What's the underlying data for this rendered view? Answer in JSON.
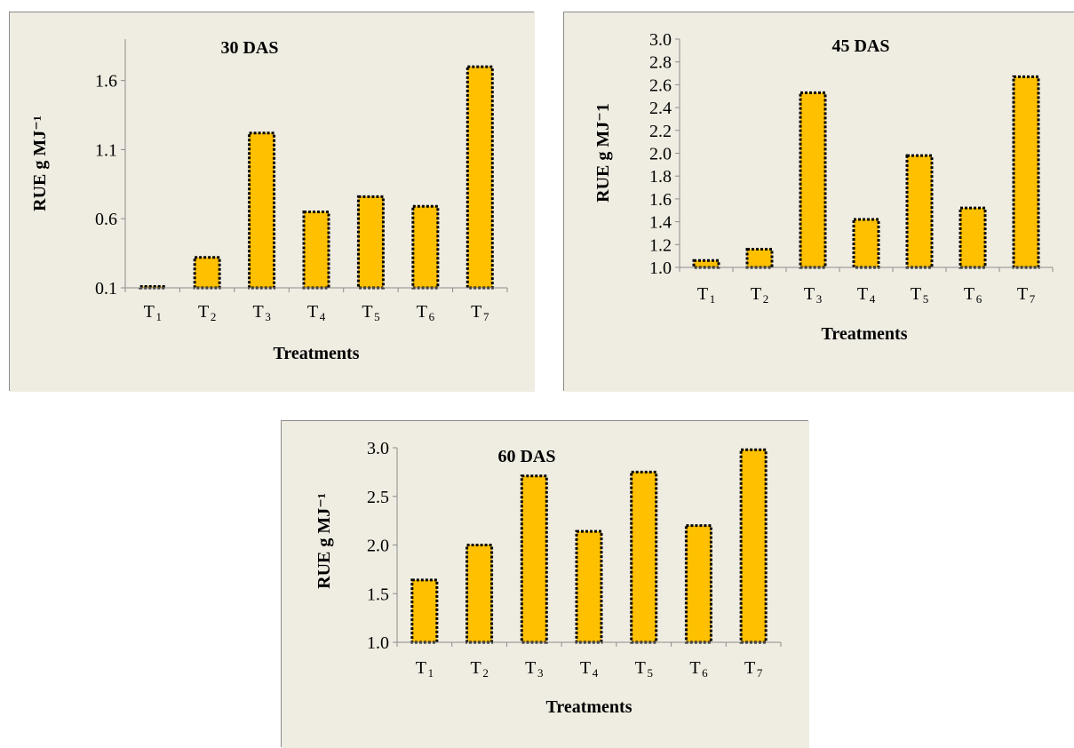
{
  "colors": {
    "panel_background": "#efece2",
    "bar_fill": "#ffc000",
    "bar_outline": "#000000",
    "axis": "#8c8c8c"
  },
  "chart_data": [
    {
      "type": "bar",
      "title": "30 DAS",
      "xlabel": "Treatments",
      "ylabel": "RUE g MJ⁻¹",
      "categories": [
        {
          "main": "T",
          "sub": "1"
        },
        {
          "main": "T",
          "sub": "2"
        },
        {
          "main": "T",
          "sub": "3"
        },
        {
          "main": "T",
          "sub": "4"
        },
        {
          "main": "T",
          "sub": "5"
        },
        {
          "main": "T",
          "sub": "6"
        },
        {
          "main": "T",
          "sub": "7"
        }
      ],
      "values": [
        0.11,
        0.32,
        1.22,
        0.65,
        0.76,
        0.69,
        1.7
      ],
      "ylim": [
        0.1,
        1.9
      ],
      "yticks": [
        "0.1",
        "0.6",
        "1.1",
        "1.6"
      ],
      "grid": false,
      "legend": "none"
    },
    {
      "type": "bar",
      "title": "45 DAS",
      "xlabel": "Treatments",
      "ylabel": "RUE g MJ⁻1",
      "categories": [
        {
          "main": "T",
          "sub": "1"
        },
        {
          "main": "T",
          "sub": "2"
        },
        {
          "main": "T",
          "sub": "3"
        },
        {
          "main": "T",
          "sub": "4"
        },
        {
          "main": "T",
          "sub": "5"
        },
        {
          "main": "T",
          "sub": "6"
        },
        {
          "main": "T",
          "sub": "7"
        }
      ],
      "values": [
        1.06,
        1.16,
        2.53,
        1.42,
        1.98,
        1.52,
        2.67
      ],
      "ylim": [
        1.0,
        3.0
      ],
      "yticks": [
        "1.0",
        "1.2",
        "1.4",
        "1.6",
        "1.8",
        "2.0",
        "2.2",
        "2.4",
        "2.6",
        "2.8",
        "3.0"
      ],
      "grid": false,
      "legend": "none"
    },
    {
      "type": "bar",
      "title": "60 DAS",
      "xlabel": "Treatments",
      "ylabel": "RUE g MJ⁻¹",
      "categories": [
        {
          "main": "T",
          "sub": "1"
        },
        {
          "main": "T",
          "sub": "2"
        },
        {
          "main": "T",
          "sub": "3"
        },
        {
          "main": "T",
          "sub": "4"
        },
        {
          "main": "T",
          "sub": "5"
        },
        {
          "main": "T",
          "sub": "6"
        },
        {
          "main": "T",
          "sub": "7"
        }
      ],
      "values": [
        1.64,
        2.0,
        2.71,
        2.14,
        2.75,
        2.2,
        2.98
      ],
      "ylim": [
        1.0,
        3.0
      ],
      "yticks": [
        "1.0",
        "1.5",
        "2.0",
        "2.5",
        "3.0"
      ],
      "grid": false,
      "legend": "none"
    }
  ]
}
